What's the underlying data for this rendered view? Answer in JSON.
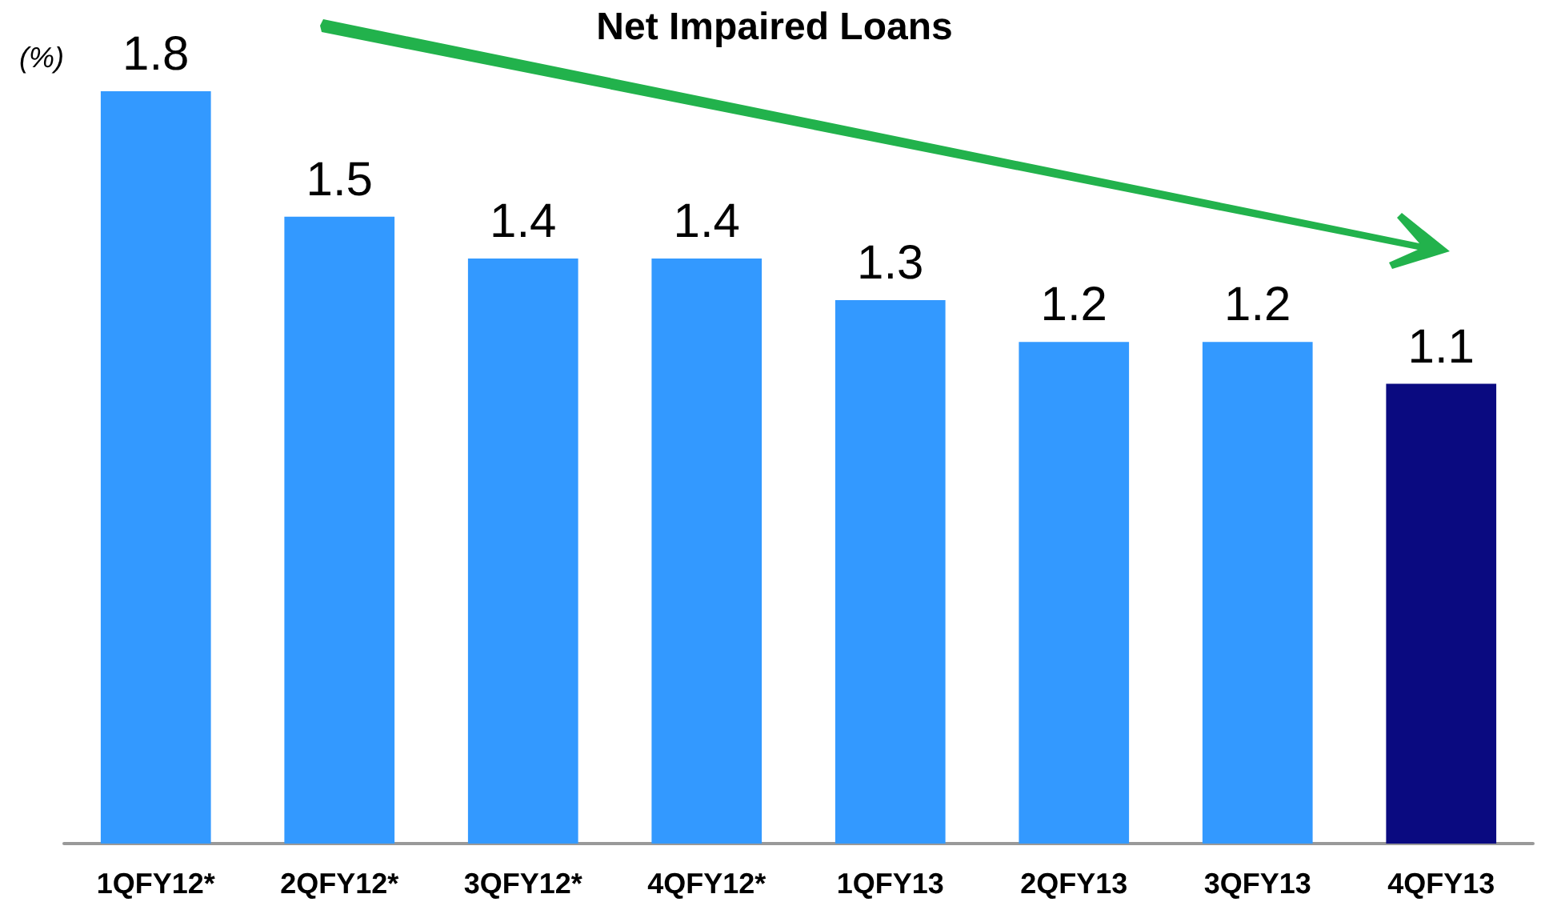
{
  "chart_data": {
    "type": "bar",
    "title": "Net Impaired Loans",
    "ylabel": "(%)",
    "categories": [
      "1QFY12*",
      "2QFY12*",
      "3QFY12*",
      "4QFY12*",
      "1QFY13",
      "2QFY13",
      "3QFY13",
      "4QFY13"
    ],
    "values": [
      1.8,
      1.5,
      1.4,
      1.4,
      1.3,
      1.2,
      1.2,
      1.1
    ],
    "colors": [
      "#3399ff",
      "#3399ff",
      "#3399ff",
      "#3399ff",
      "#3399ff",
      "#3399ff",
      "#3399ff",
      "#0a0a80"
    ],
    "data_labels": true
  }
}
